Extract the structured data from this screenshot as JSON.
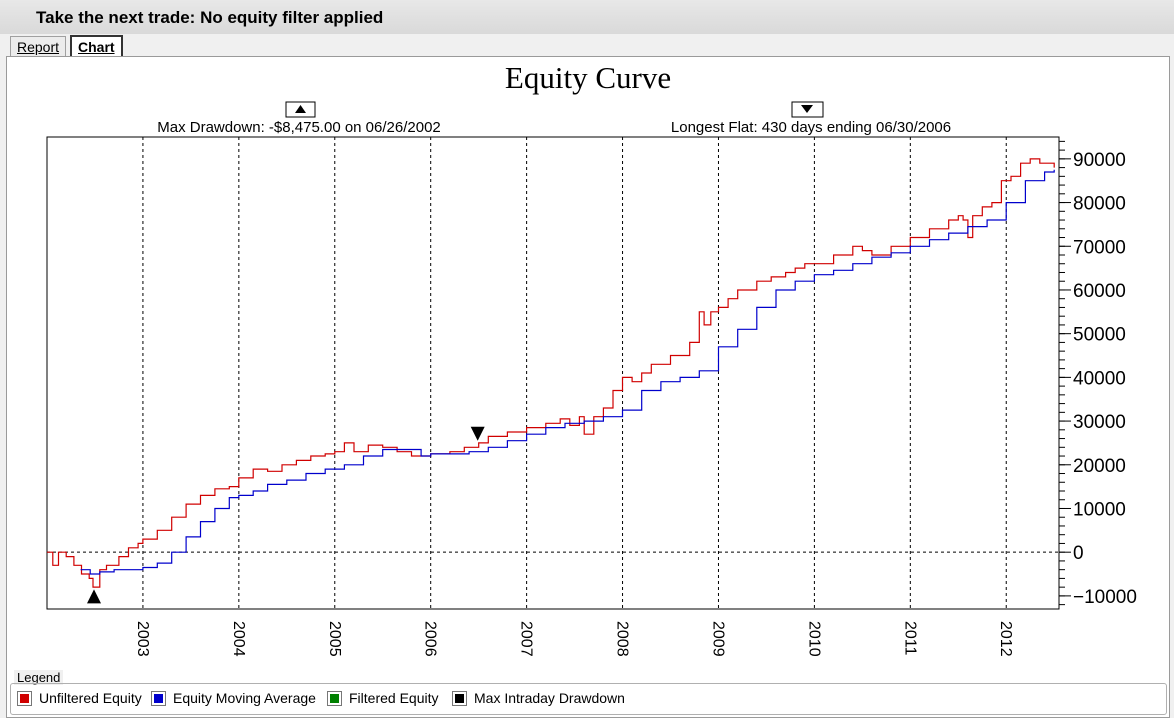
{
  "window": {
    "title": "Take the next trade: No equity filter applied"
  },
  "tabs": [
    {
      "label": "Report"
    },
    {
      "label": "Chart"
    }
  ],
  "info": {
    "max_drawdown": "Max Drawdown: -$8,475.00 on 06/26/2002",
    "longest_flat": "Longest Flat: 430 days ending 06/30/2006"
  },
  "legend": {
    "title": "Legend",
    "items": [
      {
        "label": "Unfiltered Equity",
        "color": "#d00000"
      },
      {
        "label": "Equity Moving Average",
        "color": "#0000cc"
      },
      {
        "label": "Filtered Equity",
        "color": "#008000"
      },
      {
        "label": "Max Intraday Drawdown",
        "color": "#000000"
      }
    ]
  },
  "chart_data": {
    "type": "line",
    "title": "Equity Curve",
    "xlabel": "",
    "ylabel": "",
    "xlim": [
      2002.0,
      2012.55
    ],
    "ylim": [
      -13000,
      95000
    ],
    "yticks": [
      -10000,
      0,
      10000,
      20000,
      30000,
      40000,
      50000,
      60000,
      70000,
      80000,
      90000
    ],
    "xticks": [
      2003,
      2004,
      2005,
      2006,
      2007,
      2008,
      2009,
      2010,
      2011,
      2012
    ],
    "grid": true,
    "legend_position": "bottom",
    "series": [
      {
        "name": "Unfiltered Equity",
        "color": "#d00000",
        "x": [
          2002.0,
          2002.06,
          2002.12,
          2002.2,
          2002.28,
          2002.36,
          2002.44,
          2002.48,
          2002.55,
          2002.62,
          2002.75,
          2002.85,
          2002.95,
          2003.0,
          2003.15,
          2003.3,
          2003.45,
          2003.6,
          2003.75,
          2003.9,
          2004.0,
          2004.15,
          2004.3,
          2004.45,
          2004.6,
          2004.75,
          2004.9,
          2005.0,
          2005.1,
          2005.2,
          2005.35,
          2005.5,
          2005.65,
          2005.8,
          2006.0,
          2006.2,
          2006.35,
          2006.5,
          2006.6,
          2006.8,
          2007.0,
          2007.2,
          2007.35,
          2007.45,
          2007.55,
          2007.6,
          2007.7,
          2007.8,
          2007.9,
          2008.0,
          2008.1,
          2008.2,
          2008.3,
          2008.5,
          2008.7,
          2008.8,
          2008.85,
          2008.92,
          2009.0,
          2009.1,
          2009.2,
          2009.4,
          2009.55,
          2009.7,
          2009.8,
          2009.9,
          2010.0,
          2010.2,
          2010.4,
          2010.5,
          2010.6,
          2010.8,
          2011.0,
          2011.2,
          2011.4,
          2011.5,
          2011.55,
          2011.6,
          2011.65,
          2011.75,
          2011.85,
          2011.95,
          2012.05,
          2012.15,
          2012.25,
          2012.35,
          2012.5
        ],
        "y": [
          0,
          -3000,
          0,
          -1000,
          -3000,
          -5000,
          -6000,
          -8000,
          -4000,
          -3000,
          -1000,
          1000,
          2000,
          3000,
          5000,
          8000,
          11000,
          13000,
          14500,
          15000,
          17000,
          19000,
          18500,
          20000,
          21000,
          22000,
          22500,
          23000,
          25000,
          23000,
          24500,
          24000,
          23000,
          22000,
          22500,
          23000,
          24000,
          25000,
          26500,
          27500,
          28500,
          29500,
          30500,
          29000,
          31000,
          27000,
          31000,
          33000,
          37000,
          40000,
          39000,
          41000,
          43000,
          45000,
          48000,
          55000,
          52000,
          55000,
          56000,
          58000,
          60000,
          62000,
          63000,
          64000,
          65000,
          66000,
          66000,
          68000,
          70000,
          69000,
          68000,
          70000,
          72000,
          74000,
          76000,
          77000,
          76000,
          72000,
          77000,
          79000,
          80000,
          85000,
          86000,
          89000,
          90000,
          89000,
          88000
        ]
      },
      {
        "name": "Equity Moving Average",
        "color": "#0000cc",
        "x": [
          2002.35,
          2002.45,
          2002.55,
          2002.7,
          2002.85,
          2003.0,
          2003.15,
          2003.3,
          2003.45,
          2003.6,
          2003.75,
          2003.9,
          2004.0,
          2004.15,
          2004.3,
          2004.5,
          2004.7,
          2004.9,
          2005.1,
          2005.3,
          2005.5,
          2005.7,
          2005.9,
          2006.0,
          2006.2,
          2006.4,
          2006.6,
          2006.8,
          2007.0,
          2007.2,
          2007.4,
          2007.6,
          2007.8,
          2008.0,
          2008.2,
          2008.4,
          2008.6,
          2008.8,
          2009.0,
          2009.2,
          2009.4,
          2009.6,
          2009.8,
          2010.0,
          2010.2,
          2010.4,
          2010.6,
          2010.8,
          2011.0,
          2011.2,
          2011.4,
          2011.6,
          2011.8,
          2012.0,
          2012.2,
          2012.4,
          2012.5
        ],
        "y": [
          -4000,
          -5000,
          -4500,
          -4000,
          -4000,
          -3500,
          -2500,
          0,
          3500,
          7000,
          10000,
          12500,
          13000,
          14000,
          15500,
          16500,
          18000,
          19000,
          20000,
          22000,
          23500,
          23500,
          22000,
          22500,
          22500,
          23000,
          24000,
          25500,
          27000,
          28500,
          29500,
          30000,
          31000,
          32500,
          37000,
          39000,
          40000,
          41500,
          47000,
          51000,
          56000,
          60000,
          62000,
          63500,
          64500,
          66000,
          67500,
          68500,
          70000,
          71500,
          73000,
          74500,
          76000,
          80000,
          85000,
          87000,
          87500
        ]
      }
    ],
    "markers": [
      {
        "type": "max-drawdown",
        "symbol": "triangle-up",
        "x": 2002.49,
        "y": -8500
      },
      {
        "type": "longest-flat-end",
        "symbol": "triangle-down",
        "x": 2006.49,
        "y": 25500
      }
    ]
  }
}
